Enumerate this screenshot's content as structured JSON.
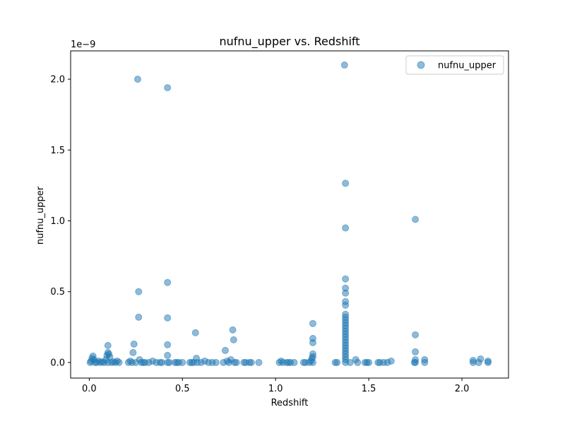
{
  "chart_data": {
    "type": "scatter",
    "title": "nufnu_upper vs. Redshift",
    "xlabel": "Redshift",
    "ylabel": "nufnu_upper",
    "y_offset_label": "1e−9",
    "xlim": [
      -0.1,
      2.25
    ],
    "ylim": [
      -0.11,
      2.2
    ],
    "x_ticks": [
      0.0,
      0.5,
      1.0,
      1.5,
      2.0
    ],
    "x_tick_labels": [
      "0.0",
      "0.5",
      "1.0",
      "1.5",
      "2.0"
    ],
    "y_ticks": [
      0.0,
      0.5,
      1.0,
      1.5,
      2.0
    ],
    "y_tick_labels": [
      "0.0",
      "0.5",
      "1.0",
      "1.5",
      "2.0"
    ],
    "grid": false,
    "legend_position": "top-right",
    "color": "#1f77b4",
    "series": [
      {
        "name": "nufnu_upper",
        "points": [
          [
            0.005,
            0.0
          ],
          [
            0.01,
            0.01
          ],
          [
            0.015,
            0.03
          ],
          [
            0.02,
            0.045
          ],
          [
            0.025,
            0.02
          ],
          [
            0.03,
            0.0
          ],
          [
            0.04,
            0.0
          ],
          [
            0.05,
            0.01
          ],
          [
            0.06,
            0.0
          ],
          [
            0.07,
            0.005
          ],
          [
            0.08,
            0.0
          ],
          [
            0.09,
            0.02
          ],
          [
            0.095,
            0.05
          ],
          [
            0.1,
            0.12
          ],
          [
            0.1,
            0.07
          ],
          [
            0.105,
            0.06
          ],
          [
            0.11,
            0.04
          ],
          [
            0.1,
            0.0
          ],
          [
            0.12,
            0.0
          ],
          [
            0.13,
            0.005
          ],
          [
            0.14,
            0.0
          ],
          [
            0.15,
            0.01
          ],
          [
            0.16,
            0.0
          ],
          [
            0.21,
            0.0
          ],
          [
            0.22,
            0.01
          ],
          [
            0.23,
            0.0
          ],
          [
            0.235,
            0.07
          ],
          [
            0.24,
            0.13
          ],
          [
            0.25,
            0.0
          ],
          [
            0.26,
            2.0
          ],
          [
            0.265,
            0.5
          ],
          [
            0.265,
            0.32
          ],
          [
            0.27,
            0.02
          ],
          [
            0.28,
            0.0
          ],
          [
            0.29,
            0.0
          ],
          [
            0.3,
            0.0
          ],
          [
            0.32,
            0.0
          ],
          [
            0.34,
            0.01
          ],
          [
            0.36,
            0.0
          ],
          [
            0.38,
            0.0
          ],
          [
            0.39,
            0.0
          ],
          [
            0.42,
            1.94
          ],
          [
            0.42,
            0.565
          ],
          [
            0.42,
            0.315
          ],
          [
            0.42,
            0.125
          ],
          [
            0.42,
            0.05
          ],
          [
            0.42,
            0.0
          ],
          [
            0.43,
            0.0
          ],
          [
            0.46,
            0.0
          ],
          [
            0.47,
            0.0
          ],
          [
            0.48,
            0.0
          ],
          [
            0.5,
            0.0
          ],
          [
            0.54,
            0.0
          ],
          [
            0.55,
            0.0
          ],
          [
            0.56,
            0.0
          ],
          [
            0.57,
            0.21
          ],
          [
            0.575,
            0.03
          ],
          [
            0.58,
            0.0
          ],
          [
            0.6,
            0.0
          ],
          [
            0.62,
            0.01
          ],
          [
            0.64,
            0.0
          ],
          [
            0.66,
            0.0
          ],
          [
            0.68,
            0.0
          ],
          [
            0.72,
            0.0
          ],
          [
            0.73,
            0.085
          ],
          [
            0.74,
            0.01
          ],
          [
            0.75,
            0.0
          ],
          [
            0.76,
            0.02
          ],
          [
            0.77,
            0.23
          ],
          [
            0.775,
            0.16
          ],
          [
            0.78,
            0.0
          ],
          [
            0.79,
            0.0
          ],
          [
            0.83,
            0.0
          ],
          [
            0.84,
            0.0
          ],
          [
            0.86,
            0.0
          ],
          [
            0.87,
            0.0
          ],
          [
            0.91,
            0.0
          ],
          [
            1.02,
            0.0
          ],
          [
            1.03,
            0.01
          ],
          [
            1.04,
            0.0
          ],
          [
            1.06,
            0.0
          ],
          [
            1.07,
            0.0
          ],
          [
            1.08,
            0.0
          ],
          [
            1.1,
            0.0
          ],
          [
            1.15,
            0.0
          ],
          [
            1.16,
            0.0
          ],
          [
            1.18,
            0.0
          ],
          [
            1.19,
            0.01
          ],
          [
            1.195,
            0.03
          ],
          [
            1.2,
            0.06
          ],
          [
            1.2,
            0.04
          ],
          [
            1.2,
            0.14
          ],
          [
            1.2,
            0.17
          ],
          [
            1.2,
            0.275
          ],
          [
            1.2,
            0.0
          ],
          [
            1.32,
            0.0
          ],
          [
            1.33,
            0.0
          ],
          [
            1.37,
            2.1
          ],
          [
            1.375,
            1.265
          ],
          [
            1.375,
            0.95
          ],
          [
            1.375,
            0.59
          ],
          [
            1.375,
            0.525
          ],
          [
            1.375,
            0.49
          ],
          [
            1.375,
            0.43
          ],
          [
            1.375,
            0.405
          ],
          [
            1.375,
            0.34
          ],
          [
            1.375,
            0.32
          ],
          [
            1.375,
            0.3
          ],
          [
            1.375,
            0.28
          ],
          [
            1.375,
            0.26
          ],
          [
            1.375,
            0.24
          ],
          [
            1.375,
            0.22
          ],
          [
            1.375,
            0.2
          ],
          [
            1.375,
            0.18
          ],
          [
            1.375,
            0.16
          ],
          [
            1.375,
            0.14
          ],
          [
            1.375,
            0.12
          ],
          [
            1.375,
            0.1
          ],
          [
            1.375,
            0.08
          ],
          [
            1.375,
            0.06
          ],
          [
            1.375,
            0.04
          ],
          [
            1.375,
            0.02
          ],
          [
            1.375,
            0.0
          ],
          [
            1.4,
            0.0
          ],
          [
            1.43,
            0.02
          ],
          [
            1.44,
            0.0
          ],
          [
            1.48,
            0.0
          ],
          [
            1.49,
            0.0
          ],
          [
            1.5,
            0.0
          ],
          [
            1.55,
            0.0
          ],
          [
            1.56,
            0.0
          ],
          [
            1.58,
            0.0
          ],
          [
            1.6,
            0.0
          ],
          [
            1.62,
            0.01
          ],
          [
            1.745,
            0.0
          ],
          [
            1.75,
            1.01
          ],
          [
            1.75,
            0.195
          ],
          [
            1.75,
            0.075
          ],
          [
            1.75,
            0.02
          ],
          [
            1.75,
            0.0
          ],
          [
            1.8,
            0.02
          ],
          [
            1.8,
            0.0
          ],
          [
            2.06,
            0.0
          ],
          [
            2.06,
            0.015
          ],
          [
            2.09,
            0.0
          ],
          [
            2.1,
            0.025
          ],
          [
            2.14,
            0.0
          ],
          [
            2.14,
            0.01
          ]
        ]
      }
    ]
  }
}
